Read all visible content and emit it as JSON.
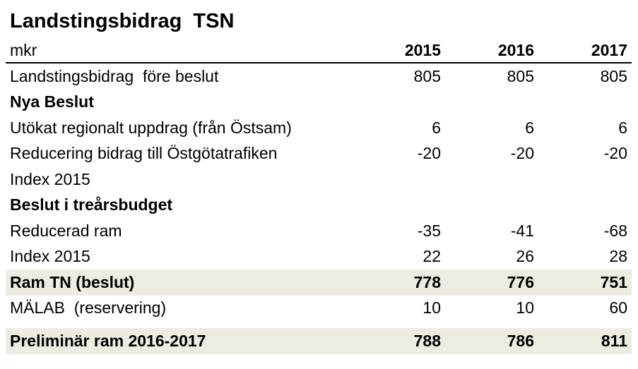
{
  "title": "Landstingsbidrag  TSN",
  "header": {
    "label": "mkr",
    "years": [
      "2015",
      "2016",
      "2017"
    ]
  },
  "rows": [
    {
      "label": "Landstingsbidrag  före beslut",
      "values": [
        "805",
        "805",
        "805"
      ]
    },
    {
      "label": "Nya Beslut",
      "values": [
        "",
        "",
        ""
      ]
    },
    {
      "label": "Utökat regionalt uppdrag (från Östsam)",
      "values": [
        "6",
        "6",
        "6"
      ]
    },
    {
      "label": "Reducering bidrag till Östgötatrafiken",
      "values": [
        "-20",
        "-20",
        "-20"
      ]
    },
    {
      "label": "Index 2015",
      "values": [
        "",
        "",
        ""
      ]
    },
    {
      "label": "Beslut i treårsbudget",
      "values": [
        "",
        "",
        ""
      ]
    },
    {
      "label": "Reducerad ram",
      "values": [
        "-35",
        "-41",
        "-68"
      ]
    },
    {
      "label": "Index 2015",
      "values": [
        "22",
        "26",
        "28"
      ]
    },
    {
      "label": "Ram TN (beslut)",
      "values": [
        "778",
        "776",
        "751"
      ]
    },
    {
      "label": "MÄLAB  (reservering)",
      "values": [
        "10",
        "10",
        "60"
      ]
    },
    {
      "label": "Preliminär ram 2016-2017",
      "values": [
        "788",
        "786",
        "811"
      ]
    }
  ],
  "colors": {
    "highlight": "#eeece1",
    "text": "#000000"
  }
}
